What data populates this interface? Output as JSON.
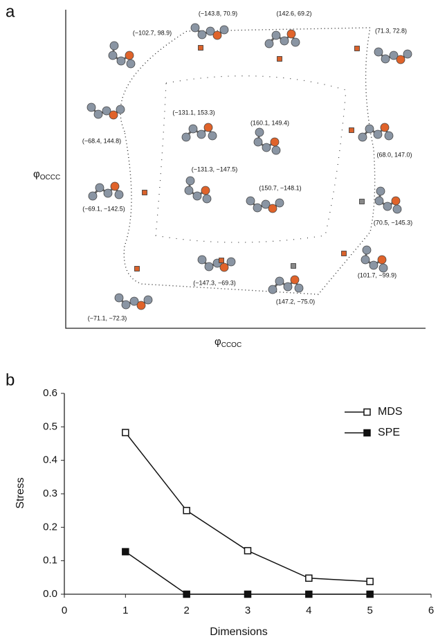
{
  "panel_a": {
    "label": "a",
    "y_symbol": "φ",
    "y_sub": "OCCC",
    "x_symbol": "φ",
    "x_sub": "CCOC",
    "annotations": [
      "(−143.8, 70.9)",
      "(142.6, 69.2)",
      "(−102.7, 98.9)",
      "(71.3, 72.8)",
      "(−131.1, 153.3)",
      "(160.1, 149.4)",
      "(−68.4, 144.8)",
      "(68.0, 147.0)",
      "(−131.3, −147.5)",
      "(150.7, −148.1)",
      "(−69.1, −142.5)",
      "(70.5, −145.3)",
      "(−147.3, −69.3)",
      "(147.2, −75.0)",
      "(101.7, −99.9)",
      "(−71.1, −72.3)"
    ]
  },
  "chart_data": {
    "type": "line",
    "panel_label": "b",
    "xlabel": "Dimensions",
    "ylabel": "Stress",
    "xlim": [
      0,
      6
    ],
    "xticks": [
      0,
      1,
      2,
      3,
      4,
      5,
      6
    ],
    "ylim": [
      0,
      0.6
    ],
    "yticks": [
      {
        "value": 0,
        "label": "0.0"
      },
      0.1,
      0.2,
      0.3,
      0.4,
      0.5,
      0.6
    ],
    "x": [
      1,
      2,
      3,
      4,
      5
    ],
    "series": [
      {
        "name": "MDS",
        "color": "#111111",
        "marker": "open-square",
        "values": [
          0.483,
          0.25,
          0.13,
          0.048,
          0.038
        ]
      },
      {
        "name": "SPE",
        "color": "#111111",
        "marker": "filled-square",
        "values": [
          0.127,
          0,
          0,
          0,
          0
        ]
      }
    ],
    "legend": "upper right"
  }
}
